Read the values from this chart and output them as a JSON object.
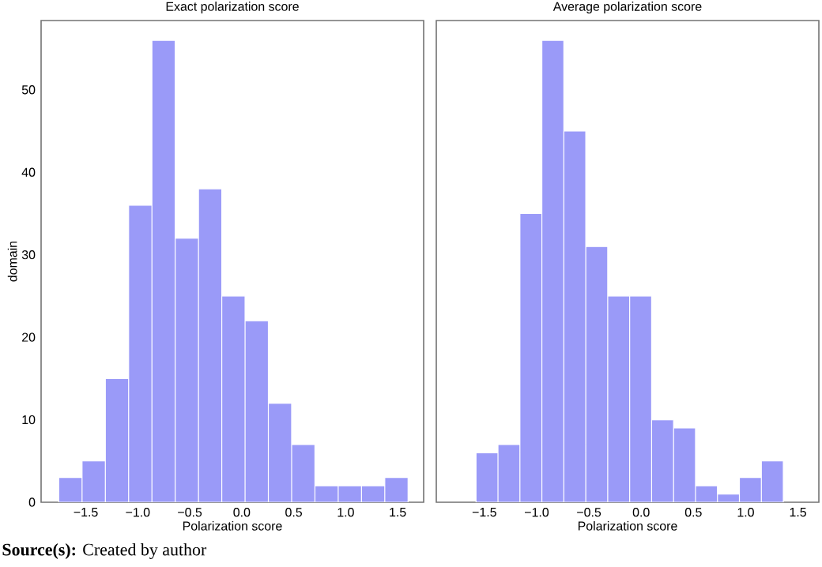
{
  "chart_data": [
    {
      "type": "histogram",
      "title": "Exact polarization score",
      "xlabel": "Polarization score",
      "ylabel": "domain",
      "color": "#9a9af8",
      "bins": [
        -1.76,
        -1.536,
        -1.312,
        -1.088,
        -0.864,
        -0.64,
        -0.416,
        -0.192,
        0.032,
        0.256,
        0.48,
        0.704,
        0.928,
        1.152,
        1.376,
        1.6
      ],
      "values": [
        3,
        5,
        15,
        36,
        56,
        32,
        38,
        25,
        22,
        12,
        7,
        2,
        2,
        2,
        3
      ],
      "xlim": [
        -1.93,
        1.75
      ],
      "ylim": [
        0,
        58.4
      ],
      "xticks": [
        {
          "value": -1.5,
          "label": "−1.5"
        },
        {
          "value": -1.0,
          "label": "−1.0"
        },
        {
          "value": -0.5,
          "label": "−0.5"
        },
        {
          "value": 0.0,
          "label": "0.0"
        },
        {
          "value": 0.5,
          "label": "0.5"
        },
        {
          "value": 1.0,
          "label": "1.0"
        },
        {
          "value": 1.5,
          "label": "1.5"
        }
      ],
      "yticks": [
        0,
        10,
        20,
        30,
        40,
        50
      ],
      "annotations": [
        "**Source(s):** Created by author"
      ]
    },
    {
      "type": "histogram",
      "title": "Average polarization score",
      "xlabel": "Polarization score",
      "color": "#9a9af8",
      "bins": [
        -1.58,
        -1.37,
        -1.16,
        -0.95,
        -0.74,
        -0.53,
        -0.32,
        -0.11,
        0.1,
        0.31,
        0.52,
        0.73,
        0.94,
        1.15,
        1.36
      ],
      "values": [
        6,
        7,
        35,
        56,
        45,
        31,
        25,
        25,
        10,
        9,
        2,
        1,
        3,
        5
      ],
      "xlim": [
        -1.96,
        1.7
      ],
      "ylim": [
        0,
        58.4
      ],
      "xticks": [
        {
          "value": -1.5,
          "label": "−1.5"
        },
        {
          "value": -1.0,
          "label": "−1.0"
        },
        {
          "value": -0.5,
          "label": "−0.5"
        },
        {
          "value": 0.0,
          "label": "0.0"
        },
        {
          "value": 0.5,
          "label": "0.5"
        },
        {
          "value": 1.0,
          "label": "1.0"
        },
        {
          "value": 1.5,
          "label": "1.5"
        }
      ],
      "yticks": [
        0,
        10,
        20,
        30,
        40,
        50
      ],
      "tick_labels": "x"
    }
  ]
}
